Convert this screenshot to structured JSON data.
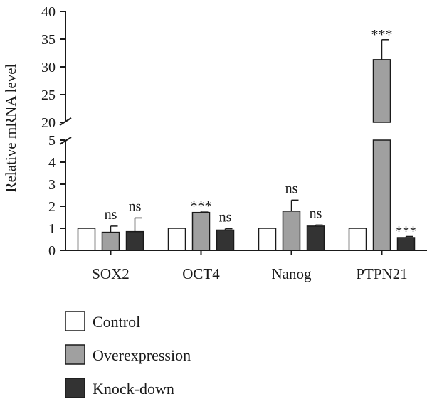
{
  "chart_data": {
    "type": "bar",
    "ylabel": "Relative mRNA level",
    "y_axis_break": [
      5,
      20
    ],
    "ylim": [
      0,
      40
    ],
    "yticks_lower": [
      0,
      1,
      2,
      3,
      4,
      5
    ],
    "yticks_upper": [
      20,
      25,
      30,
      35,
      40
    ],
    "categories": [
      "SOX2",
      "OCT4",
      "Nanog",
      "PTPN21"
    ],
    "series": [
      {
        "name": "Control",
        "color": "#ffffff",
        "values": [
          1.0,
          1.0,
          1.0,
          1.0
        ],
        "errors": [
          0,
          0,
          0,
          0
        ],
        "significance": [
          "",
          "",
          "",
          ""
        ]
      },
      {
        "name": "Overexpression",
        "color": "#a0a0a0",
        "values": [
          0.82,
          1.72,
          1.78,
          31.3
        ],
        "errors": [
          0.28,
          0.06,
          0.5,
          3.6
        ],
        "significance": [
          "ns",
          "***",
          "ns",
          "***"
        ]
      },
      {
        "name": "Knock-down",
        "color": "#333333",
        "values": [
          0.85,
          0.92,
          1.1,
          0.58
        ],
        "errors": [
          0.62,
          0.06,
          0.05,
          0.05
        ],
        "significance": [
          "ns",
          "ns",
          "ns",
          "***"
        ]
      }
    ],
    "legend_position": "bottom-left"
  }
}
